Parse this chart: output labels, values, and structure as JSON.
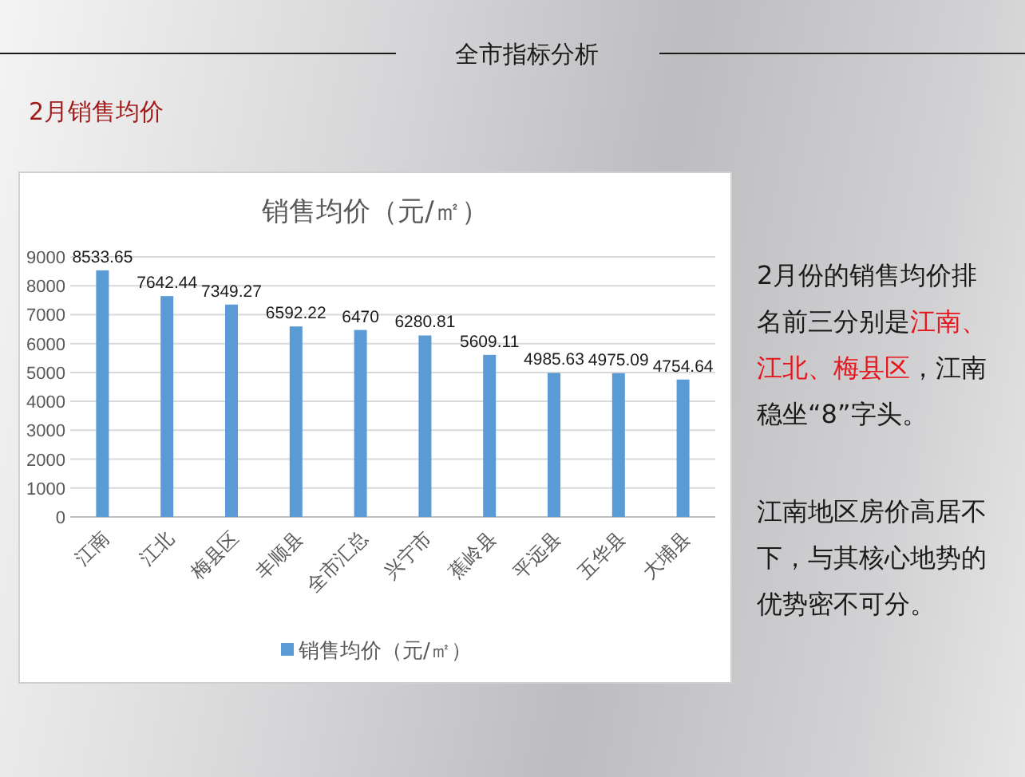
{
  "chart_data": {
    "type": "bar",
    "title": "销售均价（元/㎡）",
    "subtitle": "2月销售均价",
    "categories": [
      "江南",
      "江北",
      "梅县区",
      "丰顺县",
      "全市汇总",
      "兴宁市",
      "蕉岭县",
      "平远县",
      "五华县",
      "大埔县"
    ],
    "series": [
      {
        "name": "销售均价（元/㎡）",
        "color": "#5b9bd5",
        "values": [
          8533.65,
          7642.44,
          7349.27,
          6592.22,
          6470,
          6280.81,
          5609.11,
          4985.63,
          4975.09,
          4754.64
        ]
      }
    ],
    "ylim": [
      0,
      9000
    ],
    "yticks": [
      0,
      1000,
      2000,
      3000,
      4000,
      5000,
      6000,
      7000,
      8000,
      9000
    ],
    "grid": "y",
    "legend": "bottom",
    "data_labels": true,
    "annotations": [
      "全市指标分析",
      "2月份的销售均价排",
      "名前三分别是",
      "江南、",
      "江北、梅县区",
      "，江南",
      "稳坐“8”字头。",
      "江南地区房价高居不下，与其核心地势的优势密不可分。"
    ]
  }
}
